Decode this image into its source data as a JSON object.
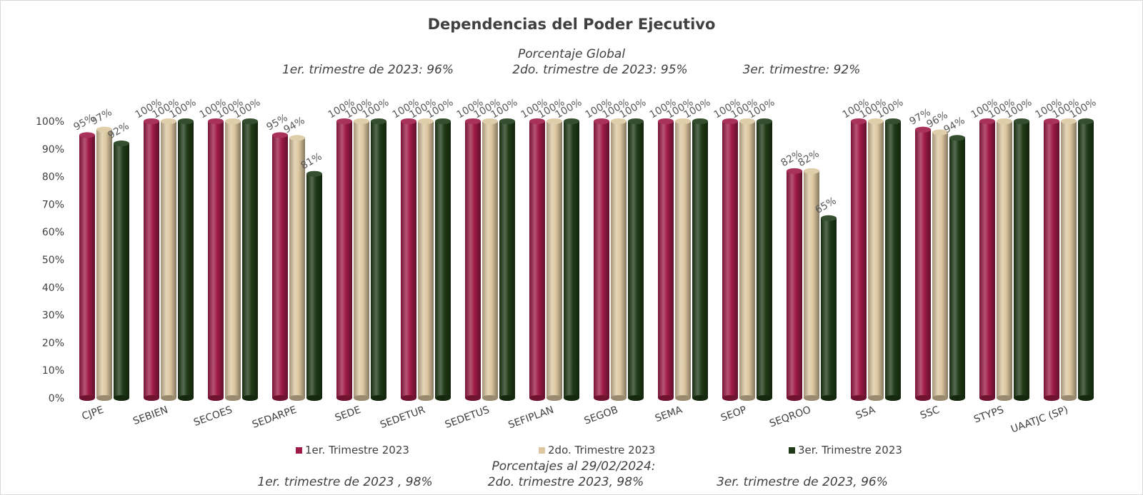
{
  "header": {
    "global_title": "Porcentaje Global",
    "global_q1": "1er. trimestre de 2023: 96%",
    "global_q2": "2do. trimestre de 2023: 95%",
    "global_q3": "3er. trimestre: 92%"
  },
  "footer": {
    "title": "Porcentajes al 29/02/2024:",
    "q1": "1er. trimestre de 2023 , 98%",
    "q2": "2do. trimestre 2023, 98%",
    "q3": "3er. trimestre de 2023, 96%"
  },
  "chart_data": {
    "type": "bar",
    "title": "Dependencias del Poder Ejecutivo",
    "categories": [
      "CJPE",
      "SEBIEN",
      "SECOES",
      "SEDARPE",
      "SEDE",
      "SEDETUR",
      "SEDETUS",
      "SEFIPLAN",
      "SEGOB",
      "SEMA",
      "SEOP",
      "SEQROO",
      "SSA",
      "SSC",
      "STYPS",
      "UAATJC (SP)"
    ],
    "series": [
      {
        "name": "1er. Trimestre 2023",
        "color": "#9e1b46",
        "values": [
          95,
          100,
          100,
          95,
          100,
          100,
          100,
          100,
          100,
          100,
          100,
          82,
          100,
          97,
          100,
          100
        ]
      },
      {
        "name": "2do. Trimestre 2023",
        "color": "#dcc7a0",
        "values": [
          97,
          100,
          100,
          94,
          100,
          100,
          100,
          100,
          100,
          100,
          100,
          82,
          100,
          96,
          100,
          100
        ]
      },
      {
        "name": "3er. Trimestre 2023",
        "color": "#1f3a16",
        "values": [
          92,
          100,
          100,
          81,
          100,
          100,
          100,
          100,
          100,
          100,
          100,
          65,
          100,
          94,
          100,
          100
        ]
      }
    ],
    "ylim": [
      0,
      100
    ],
    "yticks": [
      "0%",
      "10%",
      "20%",
      "30%",
      "40%",
      "50%",
      "60%",
      "70%",
      "80%",
      "90%",
      "100%"
    ],
    "xlabel": "",
    "ylabel": "",
    "legend": "bottom",
    "grid": false
  }
}
